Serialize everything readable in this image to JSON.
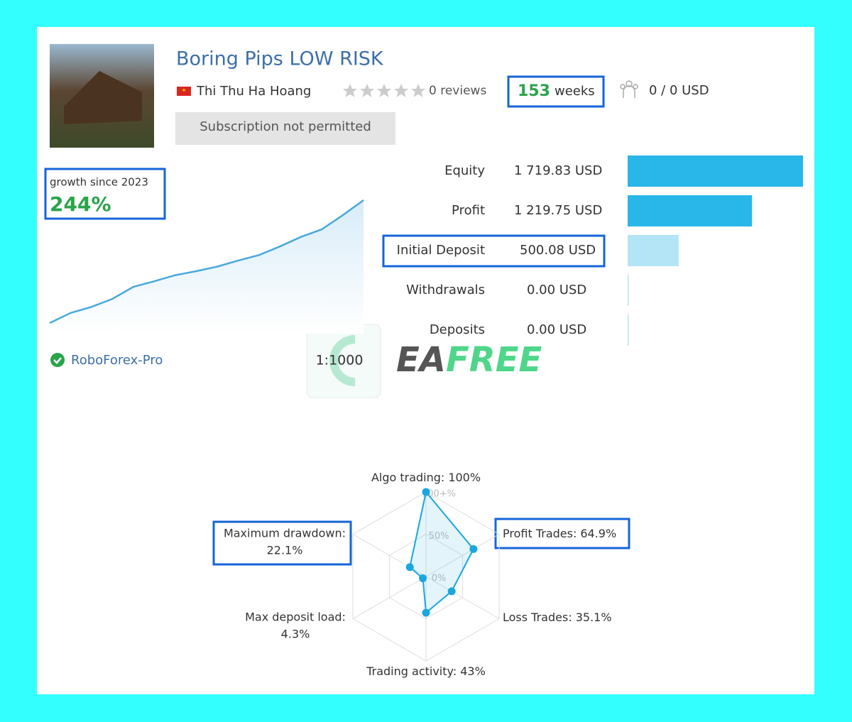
{
  "header": {
    "title": "Boring Pips LOW RISK",
    "author": "Thi Thu Ha Hoang",
    "reviews": "0 reviews",
    "weeks_value": "153",
    "weeks_unit": "weeks",
    "subscribers": "0 / 0 USD",
    "button": "Subscription not permitted"
  },
  "growth": {
    "label": "growth since 2023",
    "value": "244%",
    "broker": "RoboForex-Pro",
    "leverage": "1:1000",
    "curve": [
      0,
      20,
      32,
      48,
      72,
      83,
      95,
      103,
      112,
      124,
      135,
      152,
      171,
      186,
      214,
      244
    ]
  },
  "balance": {
    "rows": [
      {
        "label": "Equity",
        "value": "1 719.83 USD",
        "amount": 1719.83,
        "color": "#29b6e8"
      },
      {
        "label": "Profit",
        "value": "1 219.75 USD",
        "amount": 1219.75,
        "color": "#29b6e8"
      },
      {
        "label": "Initial Deposit",
        "value": "500.08 USD",
        "amount": 500.08,
        "color": "#b3e5f7"
      },
      {
        "label": "Withdrawals",
        "value": "0.00 USD",
        "amount": 0,
        "color": "#b3e5f7"
      },
      {
        "label": "Deposits",
        "value": "0.00 USD",
        "amount": 0,
        "color": "#b3e5f7"
      }
    ]
  },
  "radar": {
    "color": "#1aa6df",
    "ticks": [
      {
        "value": 100,
        "label": "100+%"
      },
      {
        "value": 50,
        "label": "50%"
      },
      {
        "value": 0,
        "label": "0%"
      }
    ],
    "axes": [
      {
        "name": "Algo trading:",
        "value": 100,
        "value_label": "100%"
      },
      {
        "name": "Profit Trades:",
        "value": 64.9,
        "value_label": "64.9%"
      },
      {
        "name": "Loss Trades:",
        "value": 35.1,
        "value_label": "35.1%"
      },
      {
        "name": "Trading activity:",
        "value": 43,
        "value_label": "43%"
      },
      {
        "name": "Max deposit load:",
        "value": 4.3,
        "value_label": "4.3%"
      },
      {
        "name": "Maximum drawdown:",
        "value": 22.1,
        "value_label": "22.1%"
      }
    ]
  },
  "watermark": [
    "EA",
    "FREE"
  ]
}
